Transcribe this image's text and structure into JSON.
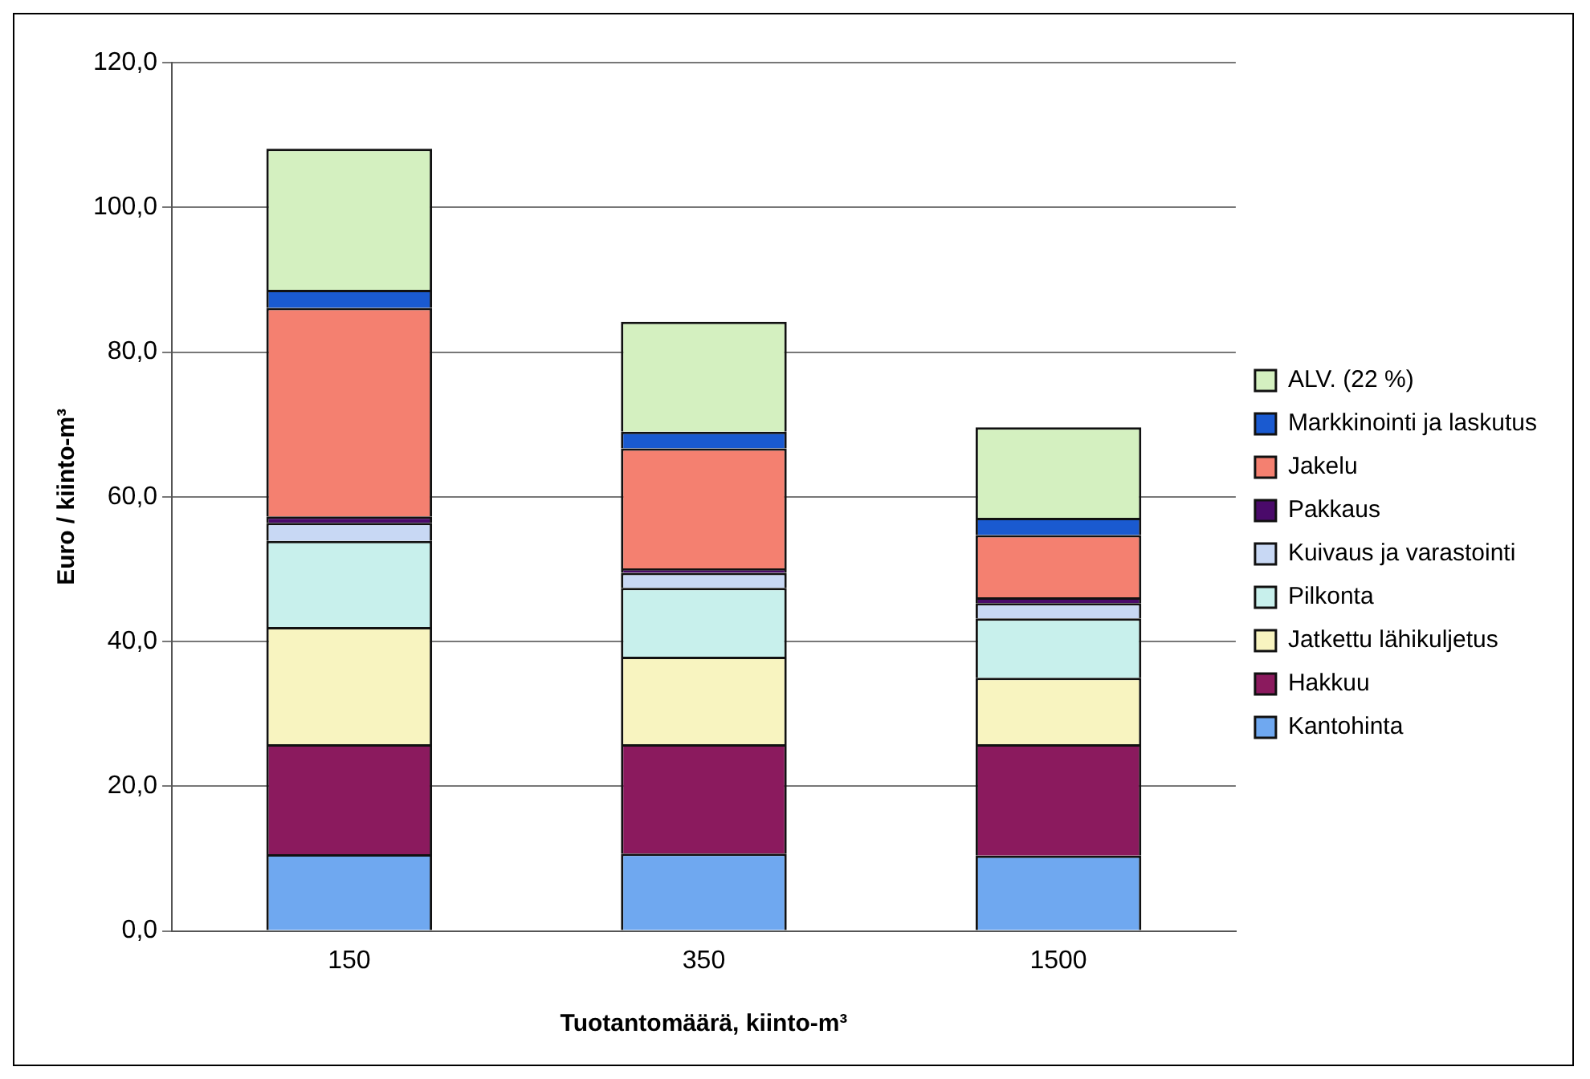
{
  "chart_data": {
    "type": "bar",
    "stacked": true,
    "xlabel": "Tuotantomäärä, kiinto-m³",
    "ylabel": "Euro / kiinto-m³",
    "categories": [
      "150",
      "350",
      "1500"
    ],
    "series": [
      {
        "name": "Kantohinta",
        "color": "#6fa8f0",
        "values": [
          10.6,
          10.7,
          10.4
        ]
      },
      {
        "name": "Hakkuu",
        "color": "#8b1a5e",
        "values": [
          15.2,
          15.1,
          15.4
        ]
      },
      {
        "name": "Jatkettu lähikuljetus",
        "color": "#f8f4c0",
        "values": [
          16.2,
          12.1,
          9.2
        ]
      },
      {
        "name": "Pilkonta",
        "color": "#c8f0ec",
        "values": [
          11.9,
          9.5,
          8.2
        ]
      },
      {
        "name": "Kuivaus ja varastointi",
        "color": "#c8d8f4",
        "values": [
          2.5,
          2.1,
          2.1
        ]
      },
      {
        "name": "Pakkaus",
        "color": "#4a0a6a",
        "values": [
          0.9,
          0.6,
          0.8
        ]
      },
      {
        "name": "Jakelu",
        "color": "#f48070",
        "values": [
          28.8,
          16.6,
          8.6
        ]
      },
      {
        "name": "Markkinointi ja laskutus",
        "color": "#1a5ad0",
        "values": [
          2.5,
          2.3,
          2.4
        ]
      },
      {
        "name": "ALV. (22 %)",
        "color": "#d4f0c0",
        "values": [
          19.5,
          15.2,
          12.5
        ]
      }
    ],
    "ylim": [
      0,
      120
    ],
    "yticks": [
      {
        "value": 0,
        "label": "0,0"
      },
      {
        "value": 20,
        "label": "20,0"
      },
      {
        "value": 40,
        "label": "40,0"
      },
      {
        "value": 60,
        "label": "60,0"
      },
      {
        "value": 80,
        "label": "80,0"
      },
      {
        "value": 100,
        "label": "100,0"
      },
      {
        "value": 120,
        "label": "120,0"
      }
    ],
    "grid": "y",
    "legend": "right"
  }
}
